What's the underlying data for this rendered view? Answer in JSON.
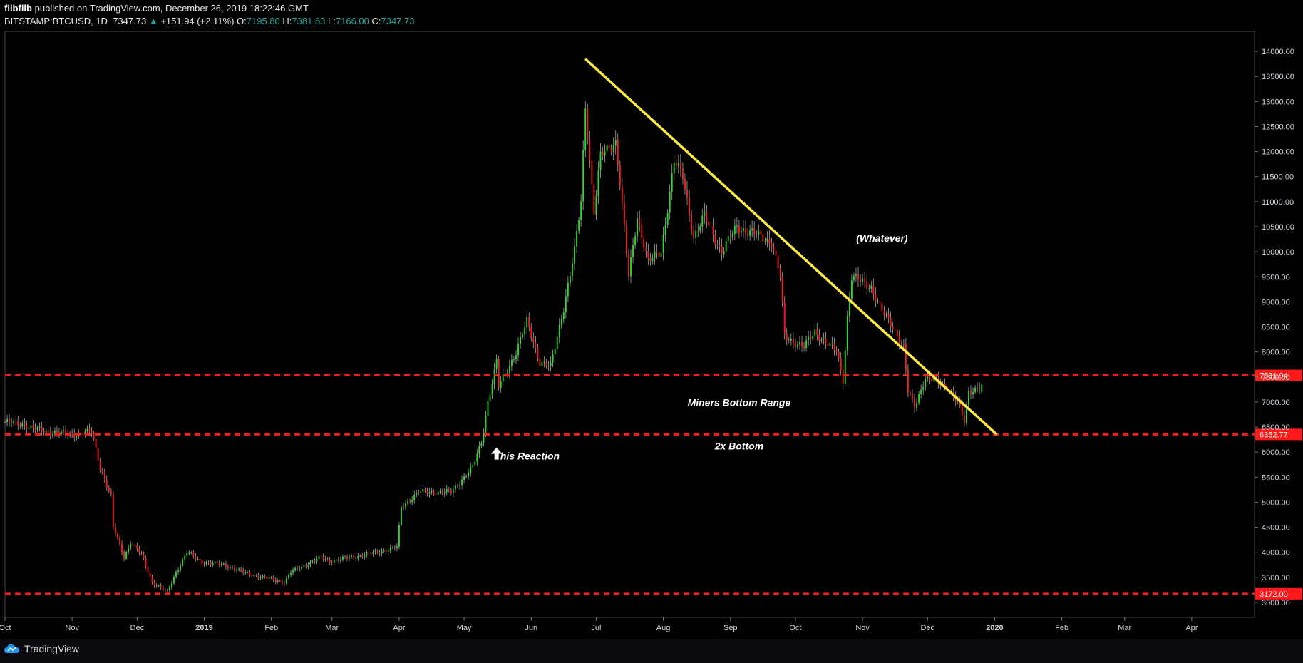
{
  "header": {
    "author": "filbfilb",
    "published_text": "published on TradingView.com, December 26, 2019 18:22:46 GMT",
    "symbol": "BITSTAMP:BTCUSD, 1D",
    "last": "7347.73",
    "change_arrow": "▲",
    "change": "+151.94 (+2.11%)",
    "o_label": "O:",
    "o_value": "7195.80",
    "h_label": "H:",
    "h_value": "7381.83",
    "l_label": "L:",
    "l_value": "7166.00",
    "c_label": "C:",
    "c_value": "7347.73"
  },
  "footer": {
    "brand": "TradingView"
  },
  "colors": {
    "up": "#2bd92b",
    "down": "#ff1a1a",
    "trendline": "#ffeb3b",
    "level": "#ff1a1a",
    "background": "#000000"
  },
  "chart_data": {
    "type": "candlestick",
    "title": "BITSTAMP:BTCUSD, 1D",
    "ylim": [
      2700,
      14400
    ],
    "y_ticks": [
      3000,
      3500,
      4000,
      4500,
      5000,
      5500,
      6000,
      6500,
      7000,
      7500,
      8000,
      8500,
      9000,
      9500,
      10000,
      10500,
      11000,
      11500,
      12000,
      12500,
      13000,
      13500,
      14000
    ],
    "y_tick_labels": [
      "3000.00",
      "3500.00",
      "4000.00",
      "4500.00",
      "5000.00",
      "5500.00",
      "6000.00",
      "6500.00",
      "7000.00",
      "7500.00",
      "8000.00",
      "8500.00",
      "9000.00",
      "9500.00",
      "10000.00",
      "10500.00",
      "11000.00",
      "11500.00",
      "12000.00",
      "12500.00",
      "13000.00",
      "13500.00",
      "14000.00"
    ],
    "x_range": [
      "2018-10-01",
      "2020-04-30"
    ],
    "x_ticks": [
      {
        "label": "Oct",
        "date": "2018-10-01",
        "bold": false
      },
      {
        "label": "Nov",
        "date": "2018-11-01",
        "bold": false
      },
      {
        "label": "Dec",
        "date": "2018-12-01",
        "bold": false
      },
      {
        "label": "2019",
        "date": "2019-01-01",
        "bold": true
      },
      {
        "label": "Feb",
        "date": "2019-02-01",
        "bold": false
      },
      {
        "label": "Mar",
        "date": "2019-03-01",
        "bold": false
      },
      {
        "label": "Apr",
        "date": "2019-04-01",
        "bold": false
      },
      {
        "label": "May",
        "date": "2019-05-01",
        "bold": false
      },
      {
        "label": "Jun",
        "date": "2019-06-01",
        "bold": false
      },
      {
        "label": "Jul",
        "date": "2019-07-01",
        "bold": false
      },
      {
        "label": "Aug",
        "date": "2019-08-01",
        "bold": false
      },
      {
        "label": "Sep",
        "date": "2019-09-01",
        "bold": false
      },
      {
        "label": "Oct",
        "date": "2019-10-01",
        "bold": false
      },
      {
        "label": "Nov",
        "date": "2019-11-01",
        "bold": false
      },
      {
        "label": "Dec",
        "date": "2019-12-01",
        "bold": false
      },
      {
        "label": "2020",
        "date": "2020-01-01",
        "bold": true
      },
      {
        "label": "Feb",
        "date": "2020-02-01",
        "bold": false
      },
      {
        "label": "Mar",
        "date": "2020-03-01",
        "bold": false
      },
      {
        "label": "Apr",
        "date": "2020-04-01",
        "bold": false
      }
    ],
    "series": [
      {
        "name": "BTCUSD",
        "close_path": [
          [
            "2018-10-01",
            6600
          ],
          [
            "2018-10-10",
            6550
          ],
          [
            "2018-10-15",
            6450
          ],
          [
            "2018-10-31",
            6350
          ],
          [
            "2018-11-10",
            6400
          ],
          [
            "2018-11-14",
            5700
          ],
          [
            "2018-11-19",
            5100
          ],
          [
            "2018-11-20",
            4500
          ],
          [
            "2018-11-25",
            3900
          ],
          [
            "2018-11-28",
            4200
          ],
          [
            "2018-12-03",
            3950
          ],
          [
            "2018-12-08",
            3400
          ],
          [
            "2018-12-15",
            3200
          ],
          [
            "2018-12-19",
            3600
          ],
          [
            "2018-12-24",
            4000
          ],
          [
            "2018-12-31",
            3800
          ],
          [
            "2019-01-10",
            3750
          ],
          [
            "2019-01-20",
            3580
          ],
          [
            "2019-02-07",
            3400
          ],
          [
            "2019-02-10",
            3600
          ],
          [
            "2019-02-24",
            3900
          ],
          [
            "2019-02-28",
            3820
          ],
          [
            "2019-03-20",
            3980
          ],
          [
            "2019-03-31",
            4100
          ],
          [
            "2019-04-02",
            4900
          ],
          [
            "2019-04-10",
            5200
          ],
          [
            "2019-04-25",
            5200
          ],
          [
            "2019-05-05",
            5700
          ],
          [
            "2019-05-09",
            6200
          ],
          [
            "2019-05-12",
            7000
          ],
          [
            "2019-05-16",
            7800
          ],
          [
            "2019-05-17",
            7300
          ],
          [
            "2019-05-25",
            8000
          ],
          [
            "2019-05-30",
            8600
          ],
          [
            "2019-06-05",
            7800
          ],
          [
            "2019-06-10",
            7700
          ],
          [
            "2019-06-16",
            8900
          ],
          [
            "2019-06-21",
            10000
          ],
          [
            "2019-06-24",
            11000
          ],
          [
            "2019-06-26",
            12900
          ],
          [
            "2019-06-30",
            10800
          ],
          [
            "2019-07-03",
            11900
          ],
          [
            "2019-07-10",
            12200
          ],
          [
            "2019-07-12",
            11400
          ],
          [
            "2019-07-16",
            9500
          ],
          [
            "2019-07-20",
            10700
          ],
          [
            "2019-07-25",
            9800
          ],
          [
            "2019-07-31",
            10000
          ],
          [
            "2019-08-06",
            11800
          ],
          [
            "2019-08-10",
            11500
          ],
          [
            "2019-08-15",
            10300
          ],
          [
            "2019-08-20",
            10700
          ],
          [
            "2019-08-28",
            10000
          ],
          [
            "2019-09-04",
            10500
          ],
          [
            "2019-09-15",
            10300
          ],
          [
            "2019-09-20",
            10200
          ],
          [
            "2019-09-24",
            9500
          ],
          [
            "2019-09-26",
            8300
          ],
          [
            "2019-10-05",
            8100
          ],
          [
            "2019-10-10",
            8400
          ],
          [
            "2019-10-15",
            8200
          ],
          [
            "2019-10-20",
            8000
          ],
          [
            "2019-10-23",
            7450
          ],
          [
            "2019-10-25",
            8700
          ],
          [
            "2019-10-27",
            9500
          ],
          [
            "2019-11-05",
            9300
          ],
          [
            "2019-11-10",
            8800
          ],
          [
            "2019-11-15",
            8500
          ],
          [
            "2019-11-20",
            8100
          ],
          [
            "2019-11-22",
            7200
          ],
          [
            "2019-11-25",
            6900
          ],
          [
            "2019-11-30",
            7500
          ],
          [
            "2019-12-05",
            7400
          ],
          [
            "2019-12-10",
            7300
          ],
          [
            "2019-12-15",
            7000
          ],
          [
            "2019-12-18",
            6600
          ],
          [
            "2019-12-20",
            7200
          ],
          [
            "2019-12-26",
            7347.73
          ]
        ],
        "last_bar": {
          "date": "2019-12-26",
          "open": 7195.8,
          "high": 7381.83,
          "low": 7166.0,
          "close": 7347.73
        }
      }
    ],
    "horizontal_levels": [
      {
        "value": 7531.94,
        "label": "7531.94"
      },
      {
        "value": 6352.77,
        "label": "6352.77"
      },
      {
        "value": 3172.0,
        "label": "3172.00"
      }
    ],
    "trendline": {
      "start": [
        "2019-06-26",
        13850
      ],
      "end": [
        "2020-01-02",
        6350
      ]
    },
    "annotations": [
      {
        "text": "(Whatever)",
        "date": "2019-11-10",
        "value": 10200
      },
      {
        "text": "Miners Bottom Range",
        "date": "2019-09-05",
        "value": 6920
      },
      {
        "text": "2x Bottom",
        "date": "2019-09-05",
        "value": 6050
      },
      {
        "text": "This Reaction",
        "date": "2019-05-30",
        "value": 5850
      }
    ],
    "arrow_marker": {
      "date": "2019-05-16",
      "value": 5950,
      "direction": "up"
    },
    "grid": false,
    "legend": "none"
  }
}
